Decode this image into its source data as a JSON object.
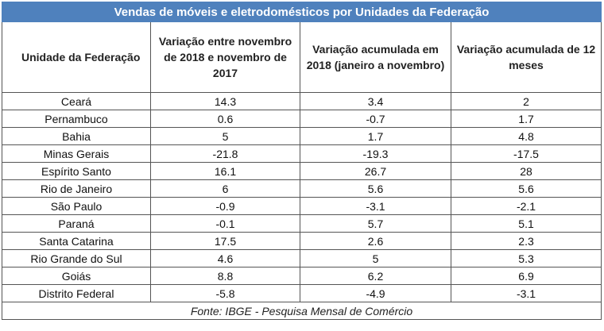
{
  "title": "Vendas de móveis e eletrodomésticos por Unidades da Federação",
  "columns": [
    "Unidade da Federação",
    "Variação entre novembro de 2018 e novembro de 2017",
    "Variação acumulada em 2018 (janeiro a novembro)",
    "Variação acumulada de 12 meses"
  ],
  "rows": [
    {
      "uf": "Ceará",
      "nov": "14.3",
      "acum": "3.4",
      "doze": "2"
    },
    {
      "uf": "Pernambuco",
      "nov": "0.6",
      "acum": "-0.7",
      "doze": "1.7"
    },
    {
      "uf": "Bahia",
      "nov": "5",
      "acum": "1.7",
      "doze": "4.8"
    },
    {
      "uf": "Minas Gerais",
      "nov": "-21.8",
      "acum": "-19.3",
      "doze": "-17.5"
    },
    {
      "uf": "Espírito Santo",
      "nov": "16.1",
      "acum": "26.7",
      "doze": "28"
    },
    {
      "uf": "Rio de Janeiro",
      "nov": "6",
      "acum": "5.6",
      "doze": "5.6"
    },
    {
      "uf": "São Paulo",
      "nov": "-0.9",
      "acum": "-3.1",
      "doze": "-2.1"
    },
    {
      "uf": "Paraná",
      "nov": "-0.1",
      "acum": "5.7",
      "doze": "5.1"
    },
    {
      "uf": "Santa Catarina",
      "nov": "17.5",
      "acum": "2.6",
      "doze": "2.3"
    },
    {
      "uf": "Rio Grande do Sul",
      "nov": "4.6",
      "acum": "5",
      "doze": "5.3"
    },
    {
      "uf": "Goiás",
      "nov": "8.8",
      "acum": "6.2",
      "doze": "6.9"
    },
    {
      "uf": "Distrito Federal",
      "nov": "-5.8",
      "acum": "-4.9",
      "doze": "-3.1"
    }
  ],
  "footer": "Fonte: IBGE - Pesquisa Mensal de Comércio",
  "colors": {
    "title_background": "#4f81bd",
    "title_text": "#ffffff",
    "border": "#555555"
  }
}
